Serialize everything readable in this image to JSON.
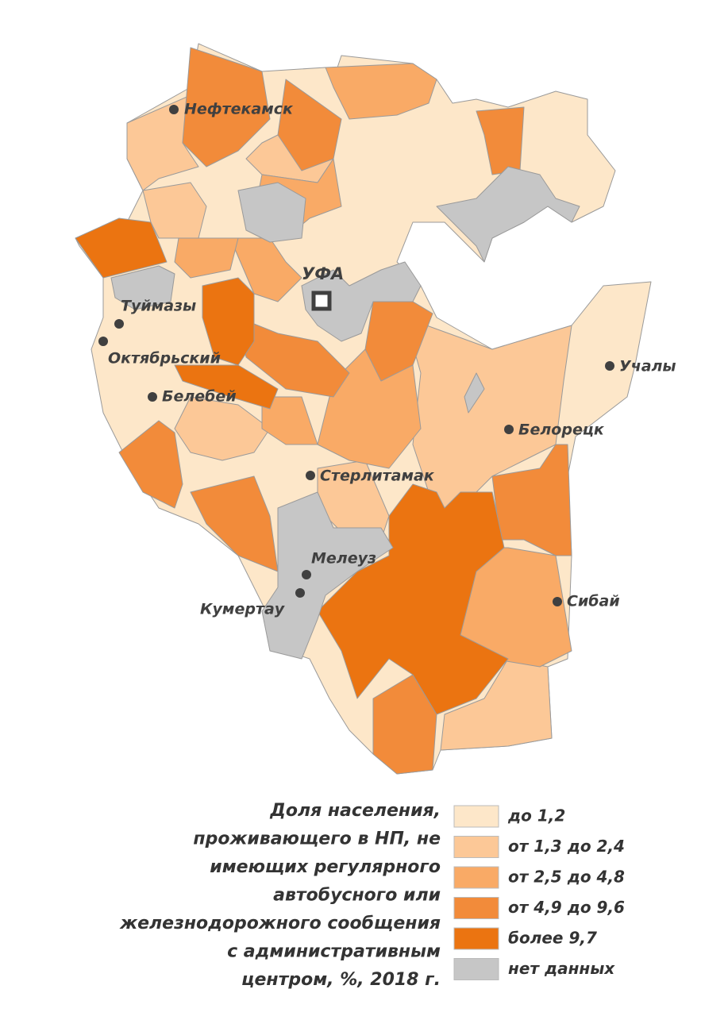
{
  "map": {
    "title_lines": [
      "Доля населения,",
      "проживающего в НП, не",
      "имеющих регулярного",
      "автобусного или",
      "железнодорожного сообщения",
      "с административным",
      "центром, %, 2018 г."
    ],
    "legend": [
      {
        "label": "до 1,2",
        "color": "#fde7c9"
      },
      {
        "label": "от 1,3 до 2,4",
        "color": "#fcc897"
      },
      {
        "label": "от 2,5 до 4,8",
        "color": "#f9aa66"
      },
      {
        "label": "от 4,9 до 9,6",
        "color": "#f28b3a"
      },
      {
        "label": "более 9,7",
        "color": "#eb7411"
      },
      {
        "label": "нет данных",
        "color": "#c6c6c6"
      }
    ],
    "capital": "УФА",
    "cities": [
      "Нефтекамск",
      "Туймазы",
      "Октябрьский",
      "Белебей",
      "Стерлитамак",
      "Мелеуз",
      "Кумертау",
      "Сибай",
      "Белорецк",
      "Учалы"
    ]
  }
}
